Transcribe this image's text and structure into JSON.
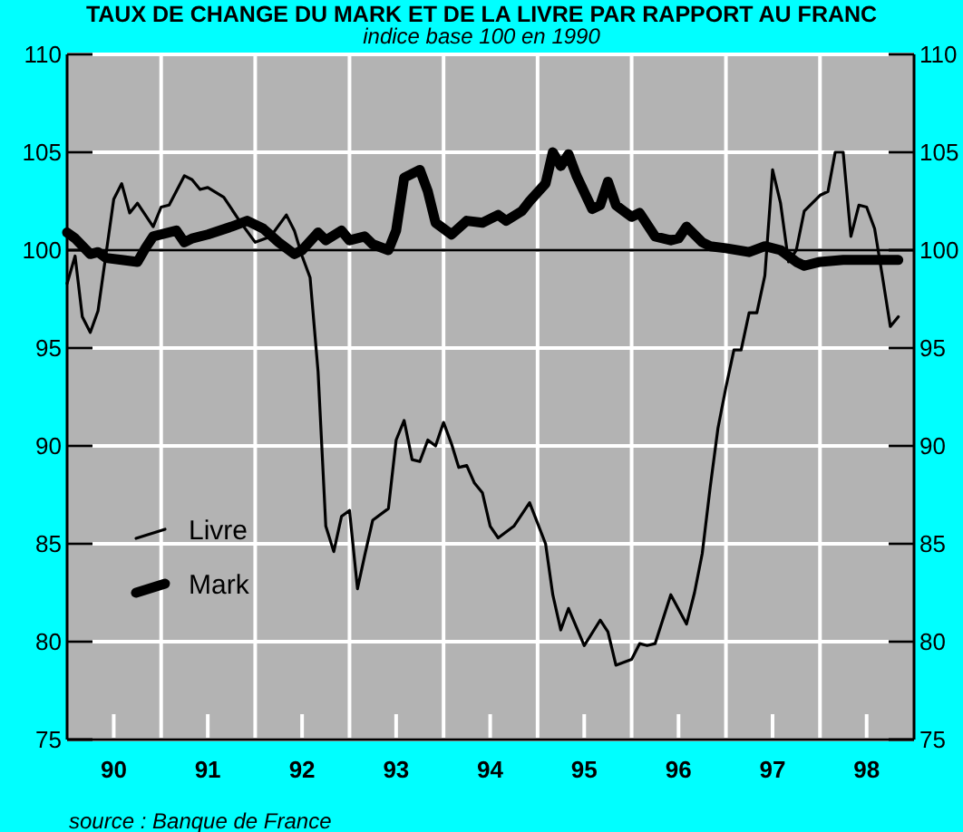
{
  "chart_data": {
    "type": "line",
    "title": "TAUX DE CHANGE DU MARK ET DE LA LIVRE PAR RAPPORT AU FRANC",
    "subtitle": "indice base 100 en 1990",
    "annotations": [
      "source : Banque de France"
    ],
    "xlim": [
      "1990-01",
      "1999-01"
    ],
    "xticks": [
      {
        "value": "1990-07",
        "label": "90"
      },
      {
        "value": "1991-01",
        "label": null
      },
      {
        "value": "1991-07",
        "label": "91"
      },
      {
        "value": "1992-01",
        "label": null
      },
      {
        "value": "1992-07",
        "label": "92"
      },
      {
        "value": "1993-01",
        "label": null
      },
      {
        "value": "1993-07",
        "label": "93"
      },
      {
        "value": "1994-01",
        "label": null
      },
      {
        "value": "1994-07",
        "label": "94"
      },
      {
        "value": "1995-01",
        "label": null
      },
      {
        "value": "1995-07",
        "label": "95"
      },
      {
        "value": "1996-01",
        "label": null
      },
      {
        "value": "1996-07",
        "label": "96"
      },
      {
        "value": "1997-01",
        "label": null
      },
      {
        "value": "1997-07",
        "label": "97"
      },
      {
        "value": "1998-01",
        "label": null
      },
      {
        "value": "1998-07",
        "label": "98"
      }
    ],
    "ylim": [
      75,
      110
    ],
    "yticks": [
      75,
      80,
      85,
      90,
      95,
      100,
      105,
      110
    ],
    "y2lim": [
      75,
      110
    ],
    "y2ticks": [
      75,
      80,
      85,
      90,
      95,
      100,
      105,
      110
    ],
    "grid": true,
    "legend": "left",
    "line_style": "solid",
    "ref_lines": [
      {
        "axis": "y",
        "value": 100,
        "color": "#000000"
      }
    ],
    "series": [
      {
        "name": "Livre",
        "color": "#000000",
        "x": [
          "1990-01",
          "1990-02",
          "1990-03",
          "1990-04",
          "1990-05",
          "1990-07",
          "1990-08",
          "1990-09",
          "1990-10",
          "1990-12",
          "1991-01",
          "1991-02",
          "1991-04",
          "1991-05",
          "1991-06",
          "1991-07",
          "1991-09",
          "1991-11",
          "1992-01",
          "1992-03",
          "1992-05",
          "1992-06",
          "1992-07",
          "1992-08",
          "1992-09",
          "1992-10",
          "1992-11",
          "1992-12",
          "1993-01",
          "1993-02",
          "1993-03",
          "1993-04",
          "1993-06",
          "1993-07",
          "1993-08",
          "1993-09",
          "1993-10",
          "1993-11",
          "1993-12",
          "1994-01",
          "1994-02",
          "1994-03",
          "1994-04",
          "1994-05",
          "1994-06",
          "1994-07",
          "1994-08",
          "1994-10",
          "1994-12",
          "1995-02",
          "1995-03",
          "1995-04",
          "1995-05",
          "1995-07",
          "1995-09",
          "1995-10",
          "1995-11",
          "1996-01",
          "1996-02",
          "1996-03",
          "1996-04",
          "1996-06",
          "1996-08",
          "1996-09",
          "1996-10",
          "1996-11",
          "1996-12",
          "1997-01",
          "1997-02",
          "1997-03",
          "1997-04",
          "1997-05",
          "1997-06",
          "1997-07",
          "1997-08",
          "1997-09",
          "1997-10",
          "1997-11",
          "1998-01",
          "1998-02",
          "1998-03",
          "1998-04",
          "1998-05",
          "1998-06",
          "1998-07",
          "1998-08",
          "1998-09",
          "1998-10",
          "1998-11"
        ],
        "values": [
          98.3,
          99.7,
          96.6,
          95.8,
          96.9,
          102.6,
          103.4,
          101.9,
          102.4,
          101.2,
          102.2,
          102.3,
          103.8,
          103.6,
          103.1,
          103.2,
          102.7,
          101.5,
          100.4,
          100.7,
          101.8,
          101.0,
          99.7,
          98.6,
          93.8,
          85.9,
          84.6,
          86.4,
          86.7,
          82.7,
          84.4,
          86.2,
          86.8,
          90.3,
          91.3,
          89.3,
          89.2,
          90.3,
          90.0,
          91.2,
          90.1,
          88.9,
          89.0,
          88.1,
          87.6,
          85.9,
          85.3,
          85.9,
          87.1,
          85.0,
          82.4,
          80.6,
          81.7,
          79.8,
          81.1,
          80.5,
          78.8,
          79.1,
          79.9,
          79.8,
          79.9,
          82.4,
          80.9,
          82.5,
          84.5,
          87.9,
          90.9,
          93.0,
          94.9,
          94.9,
          96.8,
          96.8,
          98.7,
          104.1,
          102.4,
          99.4,
          100.0,
          102.0,
          102.8,
          103.0,
          105.0,
          105.0,
          100.7,
          102.3,
          102.2,
          101.1,
          98.6,
          96.1,
          96.6
        ]
      },
      {
        "name": "Mark",
        "color": "#000000",
        "x": [
          "1990-01",
          "1990-02",
          "1990-04",
          "1990-05",
          "1990-06",
          "1990-08",
          "1990-10",
          "1990-11",
          "1990-12",
          "1991-03",
          "1991-04",
          "1991-05",
          "1991-07",
          "1991-10",
          "1991-12",
          "1992-02",
          "1992-04",
          "1992-06",
          "1992-07",
          "1992-09",
          "1992-10",
          "1992-12",
          "1993-01",
          "1993-03",
          "1993-04",
          "1993-06",
          "1993-07",
          "1993-08",
          "1993-10",
          "1993-11",
          "1993-12",
          "1994-02",
          "1994-04",
          "1994-06",
          "1994-08",
          "1994-09",
          "1994-11",
          "1994-12",
          "1995-02",
          "1995-03",
          "1995-04",
          "1995-05",
          "1995-06",
          "1995-08",
          "1995-09",
          "1995-10",
          "1995-11",
          "1995-12",
          "1996-01",
          "1996-02",
          "1996-04",
          "1996-06",
          "1996-07",
          "1996-08",
          "1996-10",
          "1996-11",
          "1997-01",
          "1997-04",
          "1997-06",
          "1997-08",
          "1997-10",
          "1997-11",
          "1998-01",
          "1998-04",
          "1998-11"
        ],
        "values": [
          100.9,
          100.6,
          99.8,
          99.9,
          99.6,
          99.5,
          99.4,
          100.1,
          100.7,
          101.0,
          100.4,
          100.6,
          100.8,
          101.2,
          101.5,
          101.1,
          100.4,
          99.8,
          100.0,
          100.9,
          100.5,
          101.0,
          100.5,
          100.7,
          100.3,
          100.0,
          101.0,
          103.7,
          104.1,
          103.0,
          101.4,
          100.8,
          101.5,
          101.4,
          101.8,
          101.5,
          102.0,
          102.5,
          103.4,
          105.0,
          104.3,
          104.9,
          103.8,
          102.1,
          102.3,
          103.5,
          102.3,
          102.0,
          101.7,
          101.9,
          100.7,
          100.5,
          100.6,
          101.2,
          100.4,
          100.2,
          100.1,
          99.9,
          100.2,
          100.0,
          99.4,
          99.2,
          99.4,
          99.5,
          99.5
        ]
      }
    ]
  }
}
